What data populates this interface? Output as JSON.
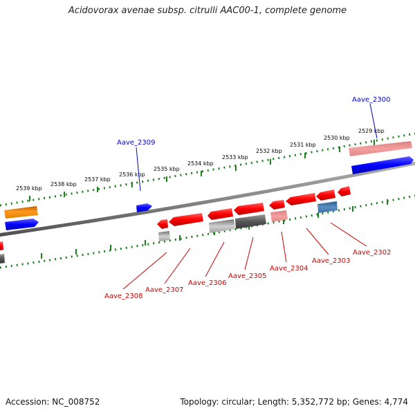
{
  "title": "Acidovorax avenae subsp. citrulli AAC00-1, complete genome",
  "footer": {
    "accession": "Accession: NC_008752",
    "summary": "Topology: circular; Length: 5,352,772 bp; Genes: 4,774"
  },
  "colors": {
    "forward_label": "#0000cc",
    "reverse_label": "#cc0000",
    "backbone": "#808080",
    "tick": "#1a7f1a"
  },
  "scale_ticks": [
    {
      "label": "2529 kbp"
    },
    {
      "label": "2530 kbp"
    },
    {
      "label": "2531 kbp"
    },
    {
      "label": "2532 kbp"
    },
    {
      "label": "2533 kbp"
    },
    {
      "label": "2534 kbp"
    },
    {
      "label": "2535 kbp"
    },
    {
      "label": "2536 kbp"
    },
    {
      "label": "2537 kbp"
    },
    {
      "label": "2538 kbp"
    },
    {
      "label": "2539 kbp"
    }
  ],
  "gene_labels": {
    "forward": [
      {
        "name": "Aave_2300"
      },
      {
        "name": "Aave_2309"
      }
    ],
    "reverse": [
      {
        "name": "Aave_2302"
      },
      {
        "name": "Aave_2303"
      },
      {
        "name": "Aave_2304"
      },
      {
        "name": "Aave_2305"
      },
      {
        "name": "Aave_2306"
      },
      {
        "name": "Aave_2307"
      },
      {
        "name": "Aave_2308"
      }
    ]
  }
}
